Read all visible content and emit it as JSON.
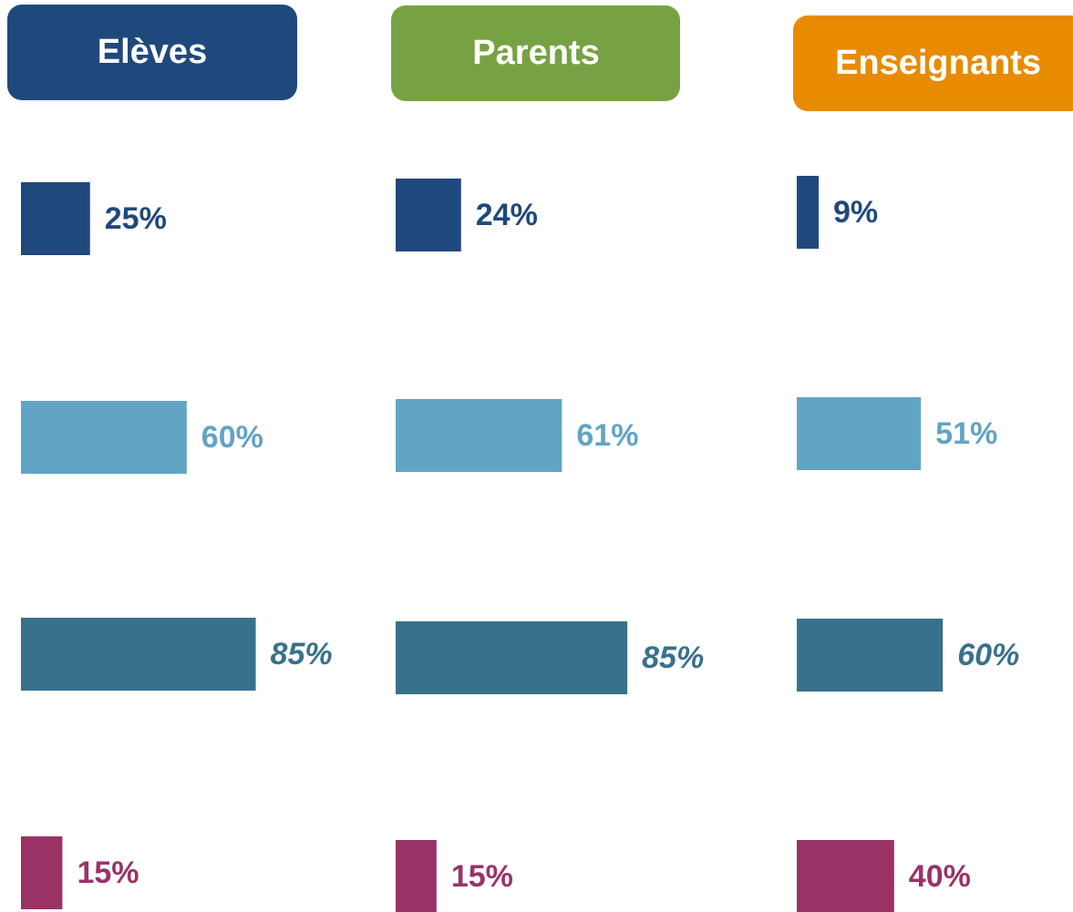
{
  "chart_data": [
    {
      "type": "bar",
      "orientation": "horizontal",
      "title": "Elèves",
      "title_color": "#1f497d",
      "categories": [
        null,
        null,
        null,
        null
      ],
      "values": [
        25,
        60,
        85,
        15
      ],
      "value_labels": [
        "25%",
        "60%",
        "85%",
        "15%"
      ],
      "colors": [
        "#1f497d",
        "#62a4c3",
        "#38718b",
        "#993366"
      ],
      "xlim": [
        0,
        100
      ]
    },
    {
      "type": "bar",
      "orientation": "horizontal",
      "title": "Parents",
      "title_color": "#77a243",
      "categories": [
        null,
        null,
        null,
        null
      ],
      "values": [
        24,
        61,
        85,
        15
      ],
      "value_labels": [
        "24%",
        "61%",
        "85%",
        "15%"
      ],
      "colors": [
        "#1f497d",
        "#62a4c3",
        "#38718b",
        "#993366"
      ],
      "xlim": [
        0,
        100
      ]
    },
    {
      "type": "bar",
      "orientation": "horizontal",
      "title": "Enseignants",
      "title_color": "#e88b00",
      "categories": [
        null,
        null,
        null,
        null
      ],
      "values": [
        9,
        51,
        60,
        40
      ],
      "value_labels": [
        "9%",
        "51%",
        "60%",
        "40%"
      ],
      "colors": [
        "#1f497d",
        "#62a4c3",
        "#38718b",
        "#993366"
      ],
      "xlim": [
        0,
        100
      ]
    }
  ]
}
